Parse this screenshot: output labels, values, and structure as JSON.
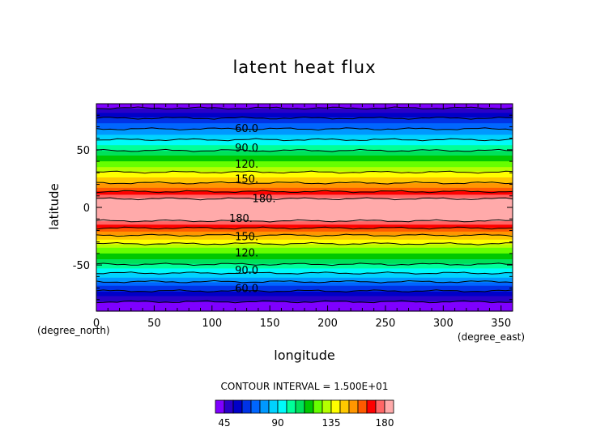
{
  "chart_data": {
    "type": "heatmap",
    "title": "latent heat flux",
    "xlabel": "longitude",
    "ylabel": "latitude",
    "x_unit": "(degree_east)",
    "y_unit": "(degree_north)",
    "xlim": [
      0,
      360
    ],
    "ylim": [
      -90,
      90
    ],
    "x_ticks": [
      0,
      50,
      100,
      150,
      200,
      250,
      300,
      350
    ],
    "y_ticks": [
      -50,
      0,
      50
    ],
    "contour_interval_text": "CONTOUR INTERVAL = 1.500E+01",
    "colorbar": {
      "levels": [
        37.5,
        45,
        52.5,
        60,
        67.5,
        75,
        82.5,
        90,
        97.5,
        105,
        112.5,
        120,
        127.5,
        135,
        142.5,
        150,
        157.5,
        165,
        172.5,
        180,
        187.5
      ],
      "colors": [
        "#7f00ff",
        "#2a00c8",
        "#0000c8",
        "#0033e6",
        "#0066ff",
        "#0099ff",
        "#00d2ff",
        "#00fafa",
        "#00ff99",
        "#00e15a",
        "#00c800",
        "#66ff00",
        "#b4ff00",
        "#ffff00",
        "#ffc800",
        "#ff9600",
        "#ff5a00",
        "#ff0000",
        "#ff6666",
        "#ffaaaa"
      ],
      "tick_labels": [
        45,
        90,
        135,
        180
      ]
    },
    "zonal_profile": {
      "lat": [
        -90,
        -85,
        -80,
        -75,
        -70,
        -65,
        -60,
        -55,
        -50,
        -45,
        -40,
        -35,
        -30,
        -25,
        -20,
        -15,
        -10,
        -5,
        0,
        5,
        10,
        15,
        20,
        25,
        30,
        35,
        40,
        45,
        50,
        55,
        60,
        65,
        70,
        75,
        80,
        85,
        90
      ],
      "value": [
        30,
        40,
        48,
        56,
        64,
        74,
        84,
        94,
        104,
        112,
        120,
        128,
        138,
        148,
        160,
        172,
        184,
        188,
        188,
        186,
        174,
        162,
        152,
        144,
        136,
        128,
        120,
        112,
        104,
        96,
        88,
        80,
        72,
        64,
        56,
        48,
        36
      ]
    },
    "contour_labels": [
      {
        "text": "60.0",
        "lon": 130,
        "lat": 69
      },
      {
        "text": "90.0",
        "lon": 130,
        "lat": 52
      },
      {
        "text": "120.",
        "lon": 130,
        "lat": 38
      },
      {
        "text": "150.",
        "lon": 130,
        "lat": 25
      },
      {
        "text": "180.",
        "lon": 145,
        "lat": 8
      },
      {
        "text": "180.",
        "lon": 125,
        "lat": -9
      },
      {
        "text": "150.",
        "lon": 130,
        "lat": -25
      },
      {
        "text": "120.",
        "lon": 130,
        "lat": -39
      },
      {
        "text": "90.0",
        "lon": 130,
        "lat": -54
      },
      {
        "text": "60.0",
        "lon": 130,
        "lat": -70
      }
    ]
  }
}
